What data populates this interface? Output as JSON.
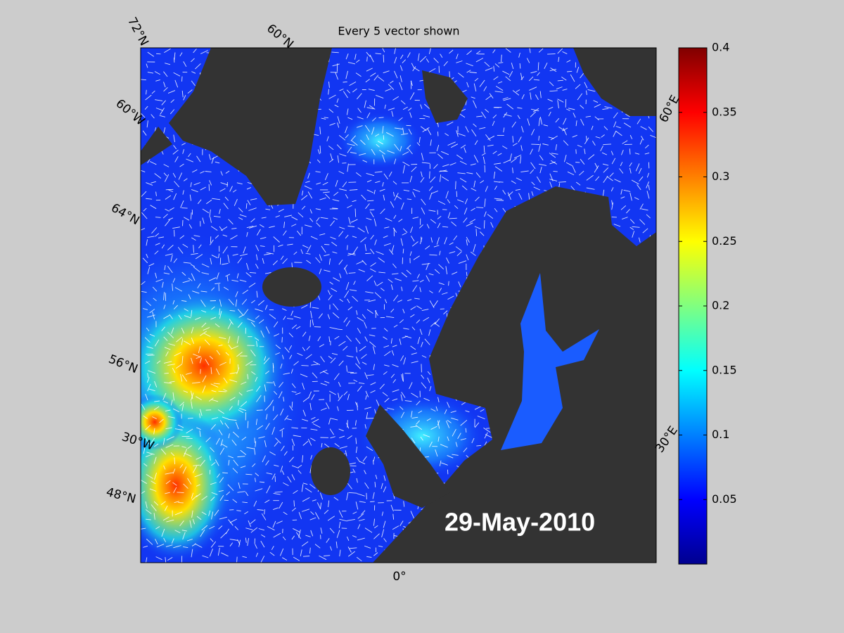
{
  "title": "Every 5 vector shown",
  "date_label": "29-May-2010",
  "graticule_labels": [
    "72°N",
    "60°N",
    "60°W",
    "64°N",
    "56°N",
    "30°W",
    "48°N",
    "0°",
    "60°E",
    "30°E"
  ],
  "colorbar": {
    "type": "colorbar",
    "lim": [
      0,
      0.4
    ],
    "ticks": [
      0.05,
      0.1,
      0.15,
      0.2,
      0.25,
      0.3,
      0.35,
      0.4
    ],
    "colormap": [
      "#00008f",
      "#0000ff",
      "#0080ff",
      "#00ffff",
      "#80ff80",
      "#ffff00",
      "#ff8000",
      "#ff0000",
      "#800000"
    ]
  }
}
